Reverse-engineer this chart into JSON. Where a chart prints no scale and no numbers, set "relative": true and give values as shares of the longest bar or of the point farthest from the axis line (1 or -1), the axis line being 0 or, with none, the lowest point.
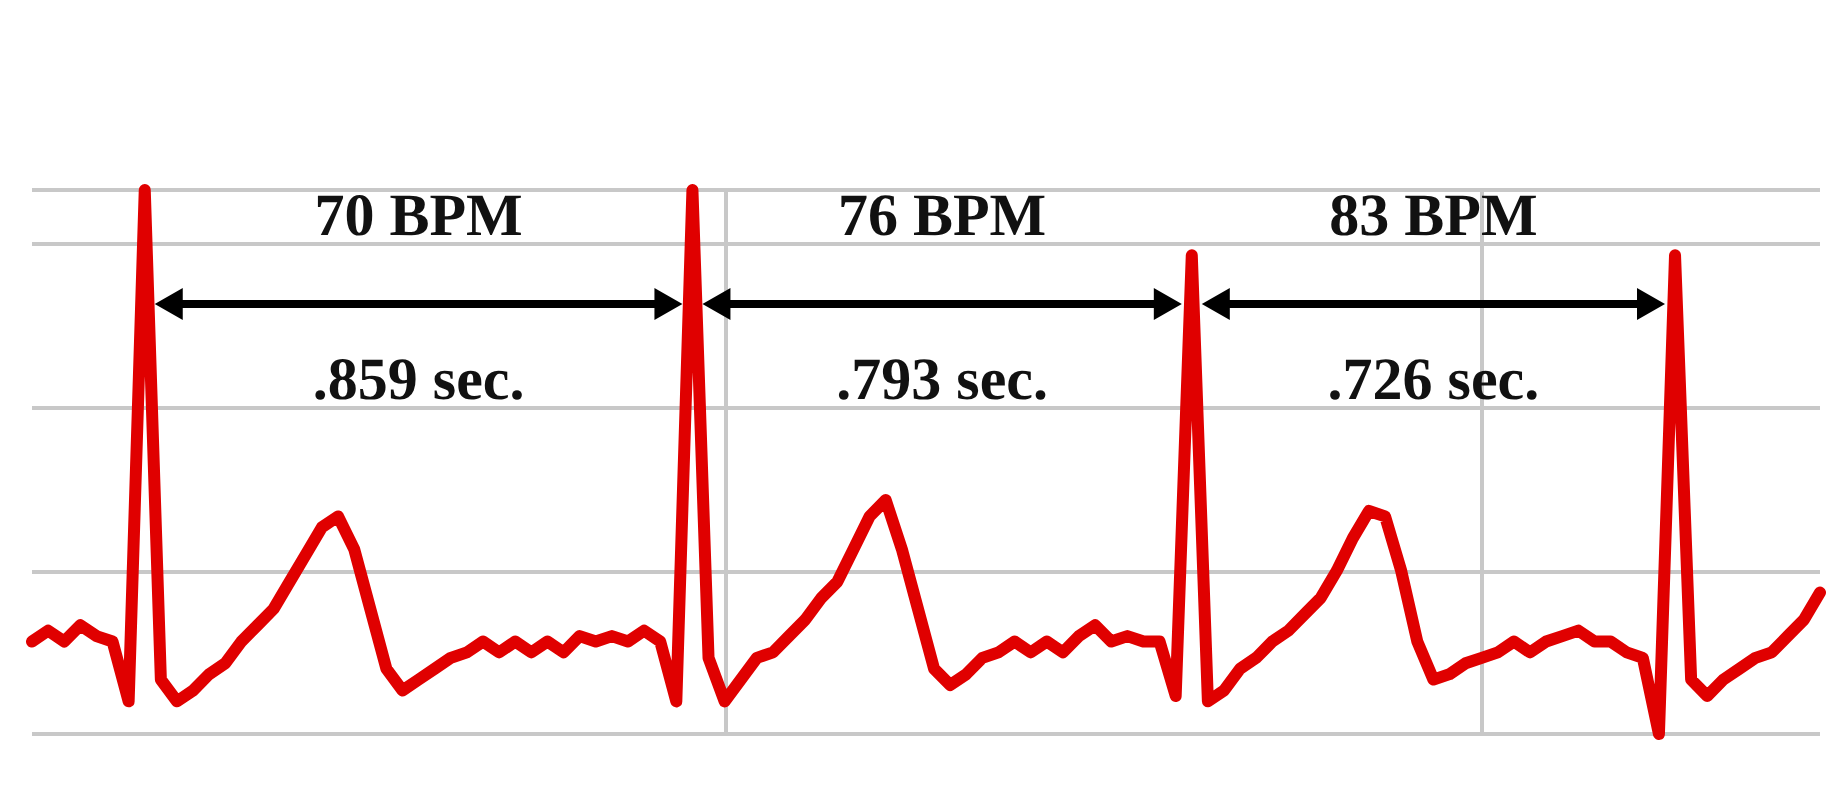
{
  "chart_data": {
    "type": "line",
    "relative": true,
    "grid": true,
    "marker": "none",
    "line_style": "solid",
    "annotations": [
      "70 BPM",
      ".859 sec.",
      "76 BPM",
      ".793 sec.",
      "83 BPM",
      ".726 sec."
    ],
    "categories": [
      null,
      null,
      null,
      null,
      null,
      null,
      null,
      null,
      null,
      null,
      null,
      null,
      null,
      null,
      null,
      null,
      null,
      null,
      null,
      null,
      null,
      null,
      null,
      null,
      null,
      null,
      null,
      null,
      null,
      null,
      null,
      null,
      null,
      null,
      null,
      null,
      null,
      null,
      null,
      null,
      null,
      null,
      null,
      null,
      null,
      null,
      null,
      null,
      null,
      null,
      null,
      null,
      null,
      null,
      null,
      null,
      null,
      null,
      null,
      null,
      null,
      null,
      null,
      null,
      null,
      null,
      null,
      null,
      null,
      null,
      null,
      null,
      null,
      null,
      null,
      null,
      null,
      null,
      null,
      null,
      null,
      null,
      null,
      null,
      null,
      null,
      null,
      null,
      null,
      null,
      null,
      null,
      null,
      null,
      null,
      null,
      null,
      null,
      null,
      null,
      null,
      null,
      null,
      null,
      null,
      null,
      null,
      null,
      null,
      null,
      null,
      null
    ],
    "series": [
      {
        "color": "#e00000",
        "values": [
          0.17,
          0.19,
          0.17,
          0.2,
          0.18,
          0.17,
          0.06,
          1,
          0.1,
          0.06,
          0.08,
          0.11,
          0.13,
          0.17,
          0.2,
          0.23,
          0.28,
          0.33,
          0.38,
          0.4,
          0.34,
          0.23,
          0.12,
          0.08,
          0.1,
          0.12,
          0.14,
          0.15,
          0.17,
          0.15,
          0.17,
          0.15,
          0.17,
          0.15,
          0.18,
          0.17,
          0.18,
          0.17,
          0.19,
          0.17,
          0.06,
          1,
          0.14,
          0.06,
          0.1,
          0.14,
          0.15,
          0.18,
          0.21,
          0.25,
          0.28,
          0.34,
          0.4,
          0.43,
          0.34,
          0.23,
          0.12,
          0.09,
          0.11,
          0.14,
          0.15,
          0.17,
          0.15,
          0.17,
          0.15,
          0.18,
          0.2,
          0.17,
          0.18,
          0.17,
          0.17,
          0.07,
          0.88,
          0.06,
          0.08,
          0.12,
          0.14,
          0.17,
          0.19,
          0.22,
          0.25,
          0.3,
          0.36,
          0.41,
          0.4,
          0.3,
          0.17,
          0.1,
          0.11,
          0.13,
          0.14,
          0.15,
          0.17,
          0.15,
          0.17,
          0.18,
          0.19,
          0.17,
          0.17,
          0.15,
          0.14,
          0,
          0.88,
          0.1,
          0.07,
          0.1,
          0.12,
          0.14,
          0.15,
          0.18,
          0.21,
          0.26
        ]
      }
    ]
  }
}
